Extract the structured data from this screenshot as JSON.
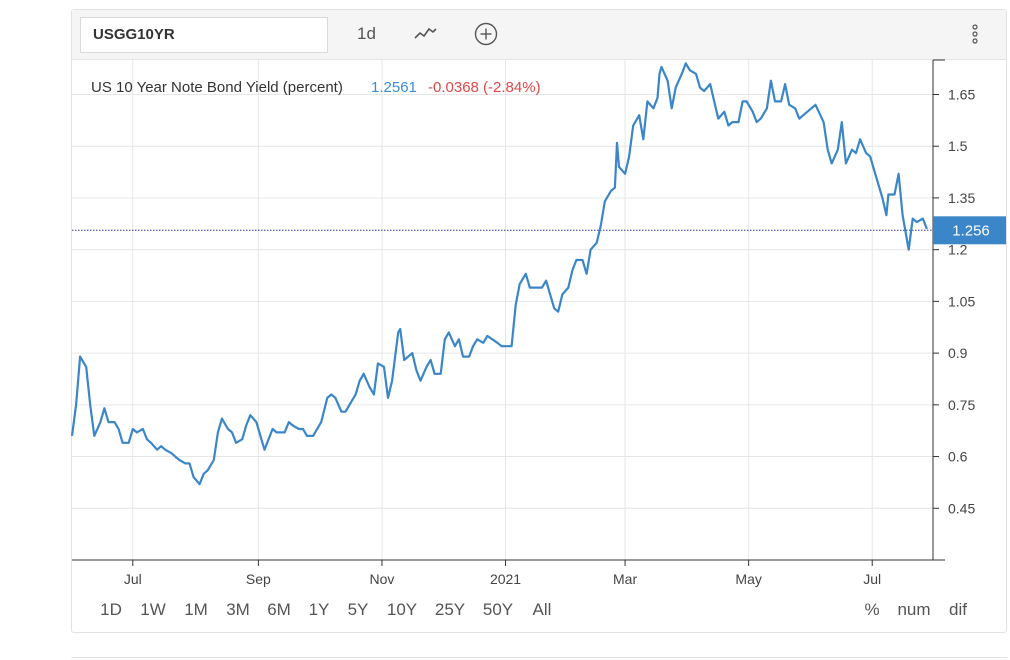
{
  "toolbar": {
    "symbol": "USGG10YR",
    "interval": "1d",
    "chart_type_icon": "line-chart-icon",
    "compare_icon": "plus-circle-icon",
    "menu_icon": "vertical-dots-icon"
  },
  "legend": {
    "name": "US 10 Year Note Bond Yield (percent)",
    "last": "1.2561",
    "change": "-0.0368 (-2.84%)",
    "last_color": "#3d8bd4",
    "change_color": "#e04848"
  },
  "price_tag": "1.256",
  "ranges": [
    "1D",
    "1W",
    "1M",
    "3M",
    "6M",
    "1Y",
    "5Y",
    "10Y",
    "25Y",
    "50Y",
    "All"
  ],
  "modes": [
    "%",
    "num",
    "dif"
  ],
  "colors": {
    "line": "#3a86c8",
    "price_tag_bg": "#3a86c8",
    "last_price_line": "#3333aa"
  },
  "chart_data": {
    "type": "line",
    "title": "",
    "xlabel": "",
    "ylabel": "",
    "ylim": [
      0.3,
      1.75
    ],
    "y_ticks": [
      "1.65",
      "1.5",
      "1.35",
      "1.2",
      "1.05",
      "0.9",
      "0.75",
      "0.6",
      "0.45"
    ],
    "x_ticks": [
      "Jul",
      "Sep",
      "Nov",
      "2021",
      "Mar",
      "May",
      "Jul"
    ],
    "x_tick_dates": [
      "2020-07-01",
      "2020-09-01",
      "2020-11-01",
      "2021-01-01",
      "2021-03-01",
      "2021-05-01",
      "2021-07-01"
    ],
    "x_range": [
      "2020-06-01",
      "2021-07-31"
    ],
    "grid": true,
    "last_value": 1.2561,
    "series": [
      {
        "points": [
          [
            "2020-06-01",
            0.66
          ],
          [
            "2020-06-03",
            0.75
          ],
          [
            "2020-06-05",
            0.89
          ],
          [
            "2020-06-08",
            0.86
          ],
          [
            "2020-06-10",
            0.75
          ],
          [
            "2020-06-12",
            0.66
          ],
          [
            "2020-06-15",
            0.7
          ],
          [
            "2020-06-17",
            0.74
          ],
          [
            "2020-06-19",
            0.7
          ],
          [
            "2020-06-22",
            0.7
          ],
          [
            "2020-06-24",
            0.68
          ],
          [
            "2020-06-26",
            0.64
          ],
          [
            "2020-06-29",
            0.64
          ],
          [
            "2020-07-01",
            0.68
          ],
          [
            "2020-07-03",
            0.67
          ],
          [
            "2020-07-06",
            0.68
          ],
          [
            "2020-07-08",
            0.65
          ],
          [
            "2020-07-10",
            0.64
          ],
          [
            "2020-07-13",
            0.62
          ],
          [
            "2020-07-15",
            0.63
          ],
          [
            "2020-07-17",
            0.62
          ],
          [
            "2020-07-20",
            0.61
          ],
          [
            "2020-07-22",
            0.6
          ],
          [
            "2020-07-24",
            0.59
          ],
          [
            "2020-07-27",
            0.58
          ],
          [
            "2020-07-29",
            0.58
          ],
          [
            "2020-07-31",
            0.54
          ],
          [
            "2020-08-03",
            0.52
          ],
          [
            "2020-08-05",
            0.55
          ],
          [
            "2020-08-07",
            0.56
          ],
          [
            "2020-08-10",
            0.59
          ],
          [
            "2020-08-12",
            0.67
          ],
          [
            "2020-08-14",
            0.71
          ],
          [
            "2020-08-17",
            0.68
          ],
          [
            "2020-08-19",
            0.67
          ],
          [
            "2020-08-21",
            0.64
          ],
          [
            "2020-08-24",
            0.65
          ],
          [
            "2020-08-26",
            0.69
          ],
          [
            "2020-08-28",
            0.72
          ],
          [
            "2020-08-31",
            0.7
          ],
          [
            "2020-09-02",
            0.66
          ],
          [
            "2020-09-04",
            0.62
          ],
          [
            "2020-09-08",
            0.68
          ],
          [
            "2020-09-10",
            0.67
          ],
          [
            "2020-09-14",
            0.67
          ],
          [
            "2020-09-16",
            0.7
          ],
          [
            "2020-09-18",
            0.69
          ],
          [
            "2020-09-21",
            0.68
          ],
          [
            "2020-09-23",
            0.68
          ],
          [
            "2020-09-25",
            0.66
          ],
          [
            "2020-09-28",
            0.66
          ],
          [
            "2020-09-30",
            0.68
          ],
          [
            "2020-10-02",
            0.7
          ],
          [
            "2020-10-05",
            0.77
          ],
          [
            "2020-10-07",
            0.78
          ],
          [
            "2020-10-09",
            0.77
          ],
          [
            "2020-10-12",
            0.73
          ],
          [
            "2020-10-14",
            0.73
          ],
          [
            "2020-10-16",
            0.75
          ],
          [
            "2020-10-19",
            0.78
          ],
          [
            "2020-10-21",
            0.82
          ],
          [
            "2020-10-23",
            0.84
          ],
          [
            "2020-10-26",
            0.8
          ],
          [
            "2020-10-28",
            0.78
          ],
          [
            "2020-10-30",
            0.87
          ],
          [
            "2020-11-02",
            0.86
          ],
          [
            "2020-11-04",
            0.77
          ],
          [
            "2020-11-06",
            0.82
          ],
          [
            "2020-11-09",
            0.96
          ],
          [
            "2020-11-10",
            0.97
          ],
          [
            "2020-11-12",
            0.88
          ],
          [
            "2020-11-16",
            0.9
          ],
          [
            "2020-11-18",
            0.85
          ],
          [
            "2020-11-20",
            0.82
          ],
          [
            "2020-11-23",
            0.86
          ],
          [
            "2020-11-25",
            0.88
          ],
          [
            "2020-11-27",
            0.84
          ],
          [
            "2020-11-30",
            0.84
          ],
          [
            "2020-12-02",
            0.94
          ],
          [
            "2020-12-04",
            0.96
          ],
          [
            "2020-12-07",
            0.92
          ],
          [
            "2020-12-09",
            0.94
          ],
          [
            "2020-12-11",
            0.89
          ],
          [
            "2020-12-14",
            0.89
          ],
          [
            "2020-12-16",
            0.92
          ],
          [
            "2020-12-18",
            0.94
          ],
          [
            "2020-12-21",
            0.93
          ],
          [
            "2020-12-23",
            0.95
          ],
          [
            "2020-12-28",
            0.93
          ],
          [
            "2020-12-30",
            0.92
          ],
          [
            "2021-01-04",
            0.92
          ],
          [
            "2021-01-06",
            1.04
          ],
          [
            "2021-01-08",
            1.1
          ],
          [
            "2021-01-11",
            1.13
          ],
          [
            "2021-01-13",
            1.09
          ],
          [
            "2021-01-15",
            1.09
          ],
          [
            "2021-01-19",
            1.09
          ],
          [
            "2021-01-21",
            1.11
          ],
          [
            "2021-01-25",
            1.03
          ],
          [
            "2021-01-27",
            1.02
          ],
          [
            "2021-01-29",
            1.07
          ],
          [
            "2021-02-01",
            1.09
          ],
          [
            "2021-02-03",
            1.14
          ],
          [
            "2021-02-05",
            1.17
          ],
          [
            "2021-02-08",
            1.17
          ],
          [
            "2021-02-10",
            1.13
          ],
          [
            "2021-02-12",
            1.2
          ],
          [
            "2021-02-15",
            1.22
          ],
          [
            "2021-02-17",
            1.27
          ],
          [
            "2021-02-19",
            1.34
          ],
          [
            "2021-02-22",
            1.37
          ],
          [
            "2021-02-24",
            1.38
          ],
          [
            "2021-02-25",
            1.51
          ],
          [
            "2021-02-26",
            1.44
          ],
          [
            "2021-03-01",
            1.42
          ],
          [
            "2021-03-03",
            1.47
          ],
          [
            "2021-03-05",
            1.56
          ],
          [
            "2021-03-08",
            1.59
          ],
          [
            "2021-03-10",
            1.52
          ],
          [
            "2021-03-12",
            1.63
          ],
          [
            "2021-03-15",
            1.61
          ],
          [
            "2021-03-17",
            1.64
          ],
          [
            "2021-03-18",
            1.71
          ],
          [
            "2021-03-19",
            1.73
          ],
          [
            "2021-03-22",
            1.69
          ],
          [
            "2021-03-24",
            1.61
          ],
          [
            "2021-03-26",
            1.67
          ],
          [
            "2021-03-29",
            1.71
          ],
          [
            "2021-03-31",
            1.74
          ],
          [
            "2021-04-02",
            1.72
          ],
          [
            "2021-04-05",
            1.71
          ],
          [
            "2021-04-07",
            1.67
          ],
          [
            "2021-04-09",
            1.66
          ],
          [
            "2021-04-12",
            1.68
          ],
          [
            "2021-04-14",
            1.63
          ],
          [
            "2021-04-16",
            1.58
          ],
          [
            "2021-04-19",
            1.6
          ],
          [
            "2021-04-21",
            1.56
          ],
          [
            "2021-04-23",
            1.57
          ],
          [
            "2021-04-26",
            1.57
          ],
          [
            "2021-04-28",
            1.63
          ],
          [
            "2021-04-30",
            1.63
          ],
          [
            "2021-05-03",
            1.6
          ],
          [
            "2021-05-05",
            1.57
          ],
          [
            "2021-05-07",
            1.58
          ],
          [
            "2021-05-10",
            1.61
          ],
          [
            "2021-05-12",
            1.69
          ],
          [
            "2021-05-14",
            1.63
          ],
          [
            "2021-05-17",
            1.63
          ],
          [
            "2021-05-19",
            1.68
          ],
          [
            "2021-05-21",
            1.62
          ],
          [
            "2021-05-24",
            1.61
          ],
          [
            "2021-05-26",
            1.58
          ],
          [
            "2021-05-28",
            1.59
          ],
          [
            "2021-06-01",
            1.61
          ],
          [
            "2021-06-03",
            1.62
          ],
          [
            "2021-06-07",
            1.57
          ],
          [
            "2021-06-09",
            1.49
          ],
          [
            "2021-06-11",
            1.45
          ],
          [
            "2021-06-14",
            1.49
          ],
          [
            "2021-06-16",
            1.57
          ],
          [
            "2021-06-18",
            1.45
          ],
          [
            "2021-06-21",
            1.49
          ],
          [
            "2021-06-23",
            1.48
          ],
          [
            "2021-06-25",
            1.52
          ],
          [
            "2021-06-28",
            1.48
          ],
          [
            "2021-06-30",
            1.47
          ],
          [
            "2021-07-02",
            1.43
          ],
          [
            "2021-07-06",
            1.35
          ],
          [
            "2021-07-08",
            1.3
          ],
          [
            "2021-07-09",
            1.36
          ],
          [
            "2021-07-12",
            1.36
          ],
          [
            "2021-07-14",
            1.42
          ],
          [
            "2021-07-16",
            1.3
          ],
          [
            "2021-07-19",
            1.2
          ],
          [
            "2021-07-21",
            1.29
          ],
          [
            "2021-07-23",
            1.28
          ],
          [
            "2021-07-26",
            1.29
          ],
          [
            "2021-07-28",
            1.26
          ]
        ]
      }
    ]
  }
}
